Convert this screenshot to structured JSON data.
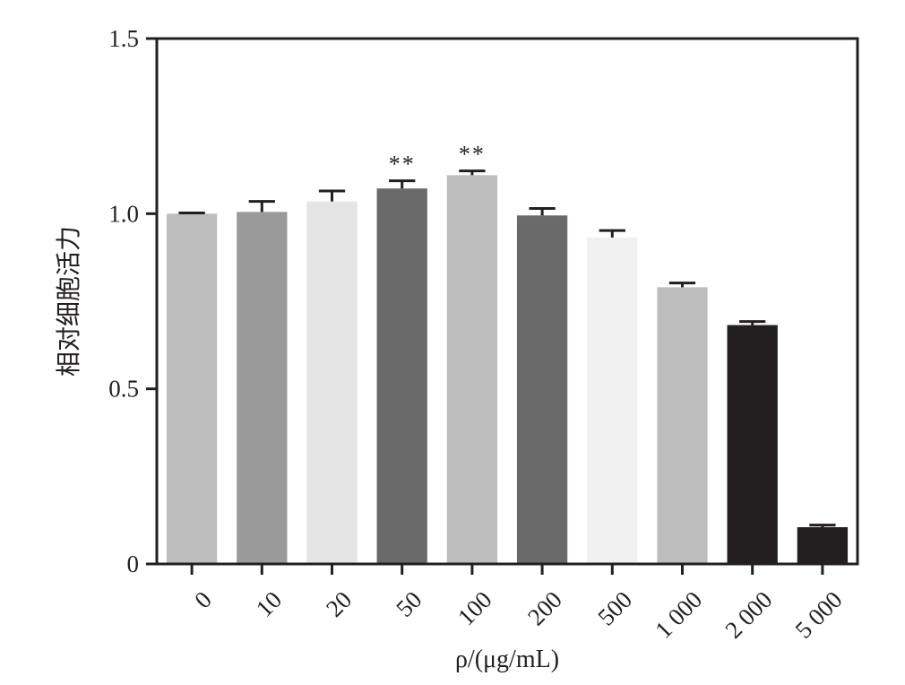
{
  "chart_data": {
    "type": "bar",
    "categories": [
      "0",
      "10",
      "20",
      "50",
      "100",
      "200",
      "500",
      "1 000",
      "2 000",
      "5 000"
    ],
    "values": [
      1.0,
      1.005,
      1.035,
      1.072,
      1.11,
      0.995,
      0.932,
      0.79,
      0.682,
      0.105
    ],
    "errors": [
      0.002,
      0.03,
      0.03,
      0.022,
      0.012,
      0.02,
      0.02,
      0.012,
      0.01,
      0.006
    ],
    "significance": [
      "",
      "",
      "",
      "**",
      "**",
      "",
      "",
      "",
      "",
      ""
    ],
    "bar_colors": [
      "#bcbdbc",
      "#9a9a9a",
      "#e4e4e4",
      "#6a6a6a",
      "#bcbdbc",
      "#6a6a6a",
      "#f0f0f0",
      "#bcbdbc",
      "#231f20",
      "#231f20"
    ],
    "ylim": [
      0,
      1.5
    ],
    "yticks": [
      0,
      0.5,
      1.0,
      1.5
    ],
    "ytick_labels": [
      "0",
      "0.5",
      "1.0",
      "1.5"
    ],
    "xlabel": "ρ/(μg/mL)",
    "ylabel": "相对细胞活力",
    "grid": false,
    "axis_color": "#231f20",
    "errorbar_color": "#231f20"
  }
}
